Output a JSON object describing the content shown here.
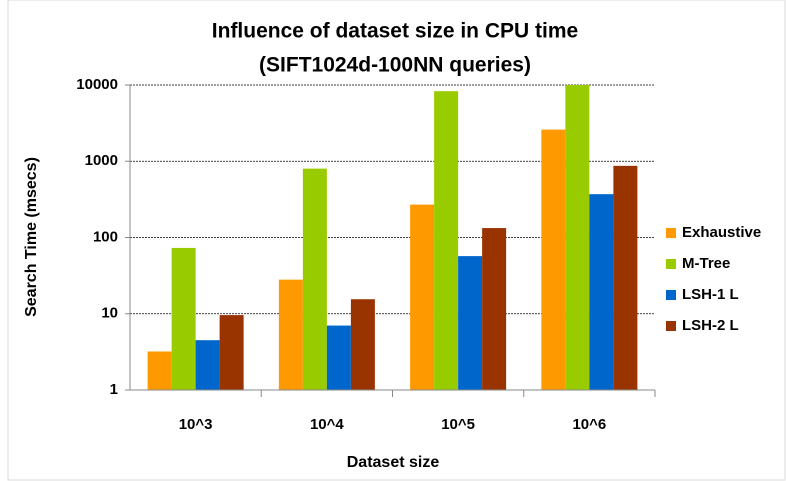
{
  "chart_data": {
    "type": "bar",
    "title": [
      "Influence of dataset size in CPU time",
      "(SIFT1024d-100NN queries)"
    ],
    "x_label": "Dataset size",
    "y_label": "Search Time (msecs)",
    "categories": [
      "10^3",
      "10^4",
      "10^5",
      "10^6"
    ],
    "series": [
      {
        "name": "Exhaustive",
        "color": "#ff9900",
        "values": [
          3.2,
          28,
          270,
          2600
        ]
      },
      {
        "name": "M-Tree",
        "color": "#99cc00",
        "values": [
          73,
          800,
          8300,
          10000
        ]
      },
      {
        "name": "LSH-1 L",
        "color": "#0066cc",
        "values": [
          4.5,
          7,
          57,
          370
        ]
      },
      {
        "name": "LSH-2 L",
        "color": "#993300",
        "values": [
          9.6,
          15.5,
          133,
          870
        ]
      }
    ],
    "log_scale": true,
    "ylim": [
      1,
      10000
    ],
    "yticks": [
      1,
      10,
      100,
      1000,
      10000
    ],
    "grid": true,
    "legend": "right"
  }
}
